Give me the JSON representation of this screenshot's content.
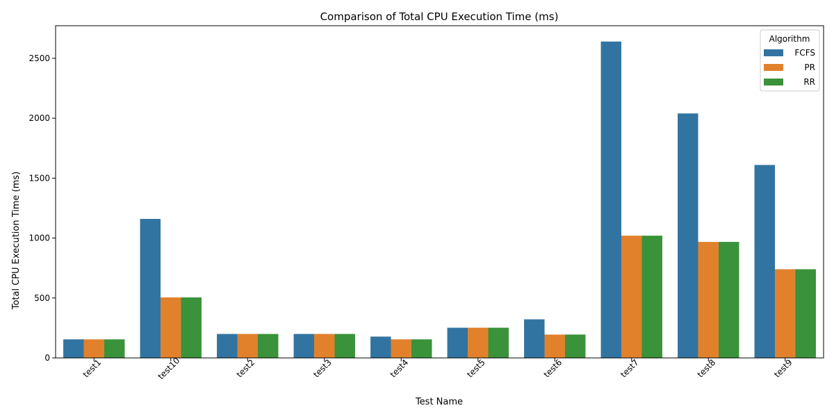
{
  "chart_data": {
    "type": "bar",
    "title": "Comparison of Total CPU Execution Time (ms)",
    "xlabel": "Test Name",
    "ylabel": "Total CPU Execution Time (ms)",
    "categories": [
      "test1",
      "test10",
      "test2",
      "test3",
      "test4",
      "test5",
      "test6",
      "test7",
      "test8",
      "test9"
    ],
    "series": [
      {
        "name": "FCFS",
        "color": "#3274a1",
        "values": [
          155,
          1160,
          200,
          200,
          178,
          252,
          322,
          2640,
          2040,
          1610
        ]
      },
      {
        "name": "PR",
        "color": "#e1812c",
        "values": [
          155,
          505,
          200,
          200,
          155,
          252,
          195,
          1020,
          968,
          740
        ]
      },
      {
        "name": "RR",
        "color": "#3a923a",
        "values": [
          155,
          505,
          200,
          200,
          155,
          252,
          195,
          1020,
          968,
          740
        ]
      }
    ],
    "ylim": [
      0,
      2772
    ],
    "yticks": [
      0,
      500,
      1000,
      1500,
      2000,
      2500
    ],
    "tick_rotation_deg": -45,
    "grid": false,
    "legend": {
      "title": "Algorithm",
      "position": "top-right"
    }
  }
}
